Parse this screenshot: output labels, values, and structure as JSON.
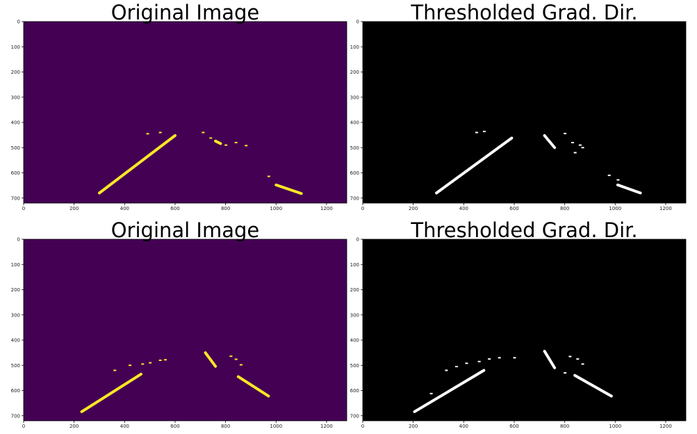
{
  "figure": {
    "panels": [
      {
        "id": "p1",
        "title": "Original Image",
        "style": "viridis"
      },
      {
        "id": "p2",
        "title": "Thresholded Grad. Dir.",
        "style": "binary"
      },
      {
        "id": "p3",
        "title": "Original Image",
        "style": "viridis"
      },
      {
        "id": "p4",
        "title": "Thresholded Grad. Dir.",
        "style": "binary"
      }
    ],
    "colors": {
      "viridis_background": "#440154",
      "viridis_foreground": "#fde725",
      "binary_background": "#000000",
      "binary_foreground": "#ffffff"
    }
  },
  "chart_data": {
    "type": "image",
    "x_ticks": [
      "0",
      "200",
      "400",
      "600",
      "800",
      "1000",
      "1200"
    ],
    "y_ticks": [
      "0",
      "100",
      "200",
      "300",
      "400",
      "500",
      "600",
      "700"
    ],
    "x_tick_values": [
      0,
      200,
      400,
      600,
      800,
      1000,
      1200
    ],
    "y_tick_values": [
      0,
      100,
      200,
      300,
      400,
      500,
      600,
      700
    ],
    "xlim": [
      0,
      1280
    ],
    "ylim": [
      720,
      0
    ],
    "images": [
      {
        "panel": "p1",
        "lines": [
          [
            300,
            680,
            600,
            452
          ],
          [
            1000,
            648,
            1100,
            682
          ],
          [
            760,
            474,
            780,
            484
          ]
        ],
        "specks": [
          [
            490,
            445
          ],
          [
            540,
            440
          ],
          [
            710,
            440
          ],
          [
            740,
            462
          ],
          [
            840,
            480
          ],
          [
            880,
            492
          ],
          [
            800,
            490
          ],
          [
            970,
            614
          ]
        ]
      },
      {
        "panel": "p2",
        "lines": [
          [
            292,
            680,
            590,
            462
          ],
          [
            1010,
            648,
            1100,
            680
          ],
          [
            720,
            452,
            760,
            500
          ]
        ],
        "specks": [
          [
            450,
            440
          ],
          [
            480,
            436
          ],
          [
            800,
            444
          ],
          [
            830,
            480
          ],
          [
            860,
            490
          ],
          [
            870,
            500
          ],
          [
            840,
            520
          ],
          [
            975,
            610
          ],
          [
            1010,
            628
          ]
        ]
      },
      {
        "panel": "p3",
        "lines": [
          [
            230,
            684,
            465,
            535
          ],
          [
            850,
            545,
            970,
            622
          ],
          [
            720,
            450,
            760,
            504
          ]
        ],
        "specks": [
          [
            360,
            520
          ],
          [
            420,
            500
          ],
          [
            470,
            495
          ],
          [
            500,
            490
          ],
          [
            540,
            480
          ],
          [
            560,
            478
          ],
          [
            820,
            464
          ],
          [
            840,
            476
          ],
          [
            860,
            498
          ]
        ]
      },
      {
        "panel": "p4",
        "lines": [
          [
            205,
            684,
            480,
            520
          ],
          [
            840,
            540,
            985,
            622
          ],
          [
            720,
            444,
            760,
            510
          ]
        ],
        "specks": [
          [
            270,
            612
          ],
          [
            330,
            520
          ],
          [
            370,
            505
          ],
          [
            410,
            492
          ],
          [
            460,
            485
          ],
          [
            500,
            475
          ],
          [
            540,
            470
          ],
          [
            600,
            470
          ],
          [
            820,
            465
          ],
          [
            850,
            475
          ],
          [
            870,
            495
          ],
          [
            800,
            530
          ]
        ]
      }
    ]
  }
}
